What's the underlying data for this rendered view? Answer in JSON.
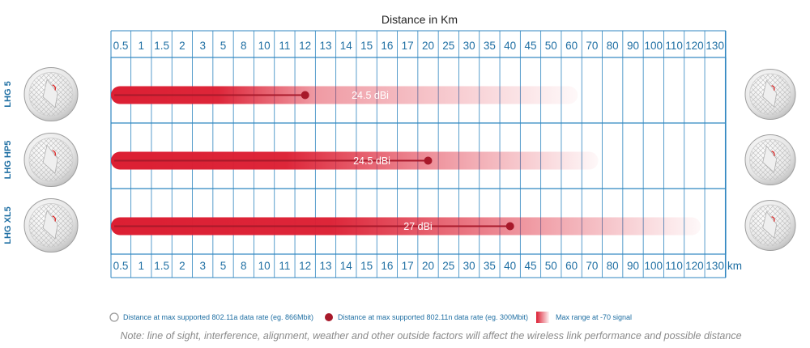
{
  "chart_data": {
    "type": "bar",
    "title": "Distance in Km",
    "axis_unit": "km",
    "categories": [
      "0.5",
      "1",
      "1.5",
      "2",
      "3",
      "5",
      "8",
      "10",
      "11",
      "12",
      "13",
      "14",
      "15",
      "16",
      "17",
      "20",
      "25",
      "30",
      "35",
      "40",
      "45",
      "50",
      "60",
      "70",
      "80",
      "90",
      "100",
      "110",
      "120",
      "130"
    ],
    "series": [
      {
        "name": "LHG 5",
        "gain_label": "24.5 dBi",
        "marker_km": "12",
        "max_range_km": "60"
      },
      {
        "name": "LHG HP5",
        "gain_label": "24.5 dBi",
        "marker_km": "20",
        "max_range_km": "70"
      },
      {
        "name": "LHG XL5",
        "gain_label": "27 dBi",
        "marker_km": "40",
        "max_range_km": "120"
      }
    ],
    "grid": true,
    "legend_placement": "bottom",
    "legend": [
      {
        "marker": "hollow-circle",
        "text": "Distance at max supported 802.11a data rate (eg. 866Mbit)"
      },
      {
        "marker": "filled-circle",
        "text": "Distance at max supported 802.11n data rate (eg. 300Mbit)"
      },
      {
        "marker": "gradient-swatch",
        "text": "Max range at -70 signal"
      }
    ]
  },
  "note": "Note: line of sight, interference, alignment, weather and other outside factors will affect the wireless link performance and possible distance",
  "colors": {
    "accent_red": "#dc1f33",
    "dark_red": "#a8192a",
    "axis_blue": "#1f6fa3",
    "grid_blue": "#2f86c0"
  },
  "icons": [
    "dish-antenna-icon"
  ]
}
